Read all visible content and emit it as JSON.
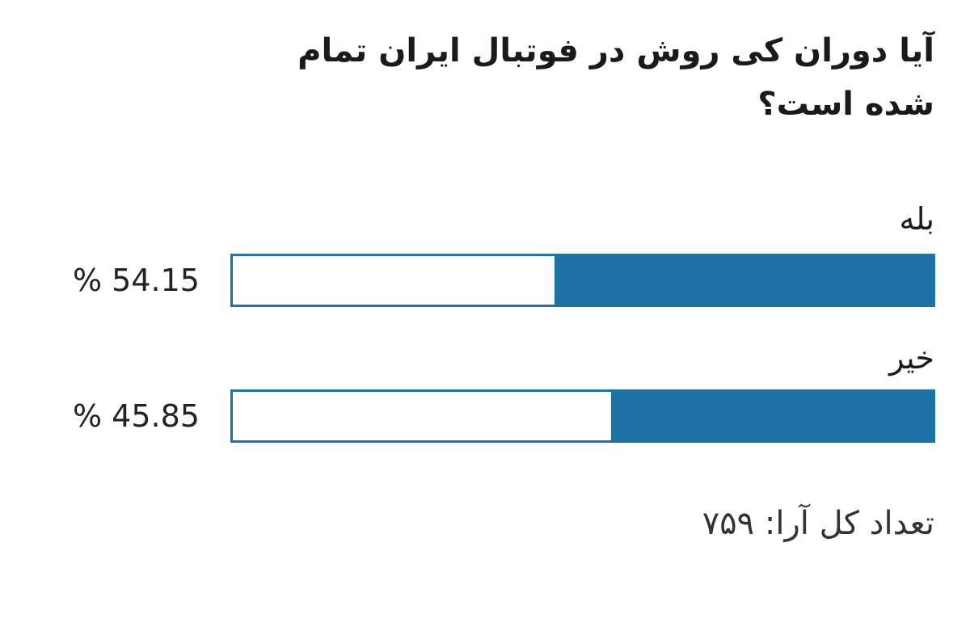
{
  "poll": {
    "question": "آیا دوران کی روش در فوتبال ایران تمام شده است؟",
    "accent_color": "#1f72a6",
    "options": [
      {
        "label": "بله",
        "percent_text": "% 54.15",
        "bar_fill_fraction": 0.54
      },
      {
        "label": "خیر",
        "percent_text": "% 45.85",
        "bar_fill_fraction": 0.46
      }
    ],
    "total_votes_label": "تعداد کل آرا:",
    "total_votes_value": "۷۵۹"
  }
}
